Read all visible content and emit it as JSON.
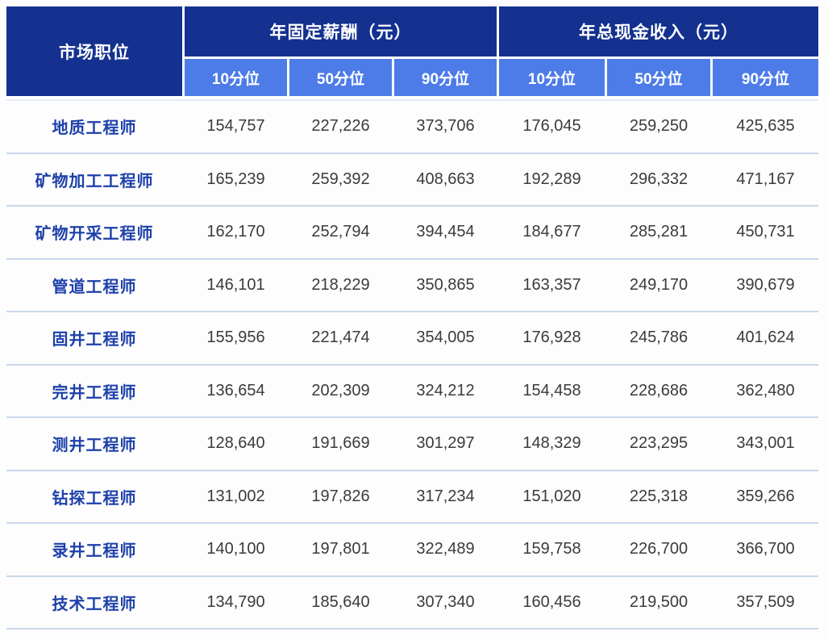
{
  "chart_data": {
    "type": "table",
    "header": {
      "position_label": "市场职位",
      "groups": [
        {
          "label": "年固定薪酬（元）",
          "subheaders": [
            "10分位",
            "50分位",
            "90分位"
          ]
        },
        {
          "label": "年总现金收入（元）",
          "subheaders": [
            "10分位",
            "50分位",
            "90分位"
          ]
        }
      ]
    },
    "rows": [
      {
        "position": "地质工程师",
        "values": [
          "154,757",
          "227,226",
          "373,706",
          "176,045",
          "259,250",
          "425,635"
        ]
      },
      {
        "position": "矿物加工工程师",
        "values": [
          "165,239",
          "259,392",
          "408,663",
          "192,289",
          "296,332",
          "471,167"
        ]
      },
      {
        "position": "矿物开采工程师",
        "values": [
          "162,170",
          "252,794",
          "394,454",
          "184,677",
          "285,281",
          "450,731"
        ]
      },
      {
        "position": "管道工程师",
        "values": [
          "146,101",
          "218,229",
          "350,865",
          "163,357",
          "249,170",
          "390,679"
        ]
      },
      {
        "position": "固井工程师",
        "values": [
          "155,956",
          "221,474",
          "354,005",
          "176,928",
          "245,786",
          "401,624"
        ]
      },
      {
        "position": "完井工程师",
        "values": [
          "136,654",
          "202,309",
          "324,212",
          "154,458",
          "228,686",
          "362,480"
        ]
      },
      {
        "position": "测井工程师",
        "values": [
          "128,640",
          "191,669",
          "301,297",
          "148,329",
          "223,295",
          "343,001"
        ]
      },
      {
        "position": "钻探工程师",
        "values": [
          "131,002",
          "197,826",
          "317,234",
          "151,020",
          "225,318",
          "359,266"
        ]
      },
      {
        "position": "录井工程师",
        "values": [
          "140,100",
          "197,801",
          "322,489",
          "159,758",
          "226,700",
          "366,700"
        ]
      },
      {
        "position": "技术工程师",
        "values": [
          "134,790",
          "185,640",
          "307,340",
          "160,456",
          "219,500",
          "357,509"
        ]
      }
    ]
  },
  "colors": {
    "header_navy": "#14318f",
    "subheader_blue": "#4d7ce8",
    "job_title_blue": "#1d40aa",
    "value_gray": "#3b3b3b",
    "divider": "#c9d7ea"
  }
}
